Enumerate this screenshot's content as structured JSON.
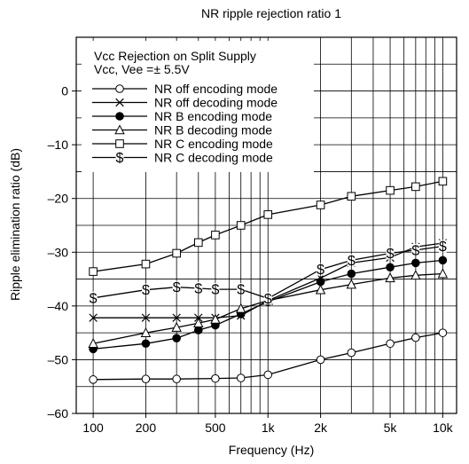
{
  "chart_data": {
    "type": "line",
    "title": "NR ripple rejection ratio 1",
    "xlabel": "Frequency (Hz)",
    "ylabel": "Ripple elimination ratio (dB)",
    "x_scale": "log",
    "xlim": [
      80,
      12000
    ],
    "ylim": [
      -60,
      10
    ],
    "grid": true,
    "x_ticks": [
      {
        "value": 100,
        "label": "100"
      },
      {
        "value": 200,
        "label": "200"
      },
      {
        "value": 500,
        "label": "500"
      },
      {
        "value": 1000,
        "label": "1k"
      },
      {
        "value": 2000,
        "label": "2k"
      },
      {
        "value": 5000,
        "label": "5k"
      },
      {
        "value": 10000,
        "label": "10k"
      }
    ],
    "y_ticks": [
      {
        "value": 0,
        "label": "0"
      },
      {
        "value": -10,
        "label": "–10"
      },
      {
        "value": -20,
        "label": "–20"
      },
      {
        "value": -30,
        "label": "–30"
      },
      {
        "value": -40,
        "label": "–40"
      },
      {
        "value": -50,
        "label": "–50"
      },
      {
        "value": -60,
        "label": "–60"
      }
    ],
    "annotation_lines": [
      "Vcc Rejection on Split Supply",
      "Vcc, Vee =± 5.5V"
    ],
    "legend_position": "top-left",
    "series": [
      {
        "name": "NR off encoding mode",
        "marker": "open-circle",
        "x": [
          100,
          200,
          300,
          500,
          700,
          1000,
          2000,
          3000,
          5000,
          7000,
          10000
        ],
        "y": [
          -53.7,
          -53.6,
          -53.6,
          -53.5,
          -53.4,
          -52.8,
          -50.0,
          -48.7,
          -47.0,
          -45.9,
          -45.0
        ]
      },
      {
        "name": "NR off decoding mode",
        "marker": "cross",
        "x": [
          100,
          200,
          300,
          400,
          500,
          700,
          1000,
          2000,
          3000,
          5000,
          7000,
          10000
        ],
        "y": [
          -42.2,
          -42.2,
          -42.2,
          -42.2,
          -42.2,
          -41.8,
          -39.0,
          -34.8,
          -32.0,
          -31.0,
          -29.0,
          -28.3
        ]
      },
      {
        "name": "NR B encoding mode",
        "marker": "filled-circle",
        "x": [
          100,
          200,
          300,
          400,
          500,
          700,
          1000,
          2000,
          3000,
          5000,
          7000,
          10000
        ],
        "y": [
          -48.0,
          -47.0,
          -46.0,
          -44.5,
          -43.6,
          -41.5,
          -39.2,
          -35.5,
          -34.0,
          -32.8,
          -32.0,
          -31.5
        ]
      },
      {
        "name": "NR B decoding mode",
        "marker": "open-triangle",
        "x": [
          100,
          200,
          300,
          400,
          500,
          700,
          1000,
          2000,
          3000,
          5000,
          7000,
          10000
        ],
        "y": [
          -47.0,
          -45.0,
          -44.0,
          -43.2,
          -42.5,
          -40.5,
          -39.0,
          -37.0,
          -36.0,
          -34.8,
          -34.3,
          -34.0
        ]
      },
      {
        "name": "NR C encoding mode",
        "marker": "open-square",
        "x": [
          100,
          200,
          300,
          400,
          500,
          700,
          1000,
          2000,
          3000,
          5000,
          7000,
          10000
        ],
        "y": [
          -33.6,
          -32.2,
          -30.2,
          -28.2,
          -26.8,
          -25.0,
          -23.0,
          -21.2,
          -19.6,
          -18.5,
          -17.8,
          -16.8
        ]
      },
      {
        "name": "NR C decoding mode",
        "marker": "dollar",
        "x": [
          100,
          200,
          300,
          400,
          500,
          700,
          1000,
          2000,
          3000,
          5000,
          7000,
          10000
        ],
        "y": [
          -38.5,
          -37.0,
          -36.5,
          -36.7,
          -36.9,
          -36.9,
          -38.6,
          -33.2,
          -31.5,
          -30.2,
          -29.6,
          -28.9
        ]
      }
    ]
  }
}
